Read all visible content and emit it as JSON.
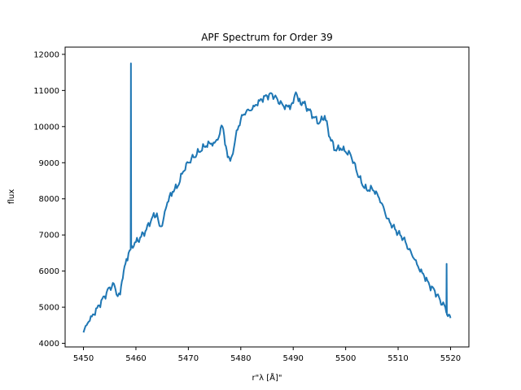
{
  "chart_data": {
    "type": "line",
    "title": "APF Spectrum for Order 39",
    "xlabel": "r\"λ [Å]\"",
    "ylabel": "flux",
    "xlim": [
      5446.5,
      5523.5
    ],
    "ylim": [
      3900,
      12200
    ],
    "xticks": [
      5450,
      5460,
      5470,
      5480,
      5490,
      5500,
      5510,
      5520
    ],
    "yticks": [
      4000,
      5000,
      6000,
      7000,
      8000,
      9000,
      10000,
      11000,
      12000
    ],
    "grid": false,
    "series": [
      {
        "color": "#1f77b4",
        "x": [
          5450.0,
          5451.0,
          5452.0,
          5453.0,
          5454.0,
          5455.0,
          5455.8,
          5456.3,
          5457.0,
          5457.5,
          5458.0,
          5458.6,
          5459.0,
          5459.05,
          5459.1,
          5459.2,
          5460.0,
          5461.0,
          5462.0,
          5463.0,
          5464.0,
          5464.5,
          5465.0,
          5465.5,
          5466.0,
          5467.0,
          5468.0,
          5469.0,
          5470.0,
          5471.0,
          5472.0,
          5473.0,
          5474.0,
          5475.0,
          5476.0,
          5476.5,
          5477.0,
          5477.5,
          5478.0,
          5478.5,
          5479.0,
          5480.0,
          5481.0,
          5482.0,
          5483.0,
          5484.0,
          5485.0,
          5486.0,
          5487.0,
          5488.0,
          5489.0,
          5490.0,
          5490.5,
          5491.0,
          5492.0,
          5493.0,
          5494.0,
          5495.0,
          5496.0,
          5497.0,
          5498.0,
          5499.0,
          5500.0,
          5501.0,
          5502.0,
          5503.0,
          5504.0,
          5505.0,
          5506.0,
          5507.0,
          5508.0,
          5509.0,
          5510.0,
          5511.0,
          5512.0,
          5513.0,
          5514.0,
          5515.0,
          5516.0,
          5517.0,
          5518.0,
          5519.0,
          5519.2,
          5519.25,
          5519.3,
          5519.5,
          5520.0
        ],
        "y": [
          4300,
          4600,
          4800,
          5050,
          5300,
          5550,
          5650,
          5350,
          5350,
          5800,
          6200,
          6500,
          6600,
          11750,
          6650,
          6700,
          6800,
          6950,
          7150,
          7450,
          7600,
          7250,
          7250,
          7650,
          7900,
          8200,
          8350,
          8750,
          9000,
          9150,
          9300,
          9450,
          9550,
          9550,
          9800,
          10000,
          9500,
          9150,
          9050,
          9250,
          9700,
          10200,
          10400,
          10450,
          10600,
          10750,
          10850,
          10900,
          10750,
          10600,
          10550,
          10650,
          10950,
          10700,
          10650,
          10450,
          10250,
          10100,
          10300,
          9700,
          9350,
          9400,
          9300,
          9200,
          8800,
          8450,
          8250,
          8300,
          8150,
          7850,
          7450,
          7250,
          7050,
          6900,
          6600,
          6350,
          6050,
          5850,
          5600,
          5450,
          5200,
          5000,
          4850,
          6200,
          4800,
          4750,
          4700
        ]
      }
    ]
  }
}
